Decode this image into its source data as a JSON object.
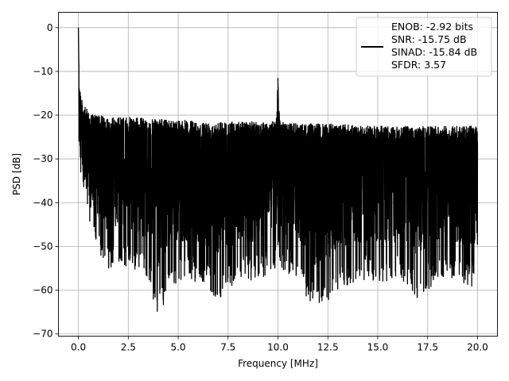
{
  "chart_data": {
    "type": "line",
    "title": "",
    "xlabel": "Frequency [MHz]",
    "ylabel": "PSD [dB]",
    "xlim": [
      -0.999,
      20.999
    ],
    "ylim": [
      -70.5,
      3.5
    ],
    "xticks": [
      0.0,
      2.5,
      5.0,
      7.5,
      10.0,
      12.5,
      15.0,
      17.5,
      20.0
    ],
    "xtick_labels": [
      "0.0",
      "2.5",
      "5.0",
      "7.5",
      "10.0",
      "12.5",
      "15.0",
      "17.5",
      "20.0"
    ],
    "yticks": [
      0,
      -10,
      -20,
      -30,
      -40,
      -50,
      -60,
      -70
    ],
    "ytick_labels": [
      "0",
      "−10",
      "−20",
      "−30",
      "−40",
      "−50",
      "−60",
      "−70"
    ],
    "grid": true,
    "line_color": "#000000",
    "legend": {
      "location": "upper-right",
      "entries": [
        "ENOB: -2.92 bits",
        "SNR: -15.75 dB",
        "SINAD: -15.84 dB",
        "SFDR: 3.57"
      ]
    },
    "series": [
      {
        "x": [
          0.0,
          0.02,
          0.05,
          0.1,
          0.15,
          0.2,
          0.3,
          0.4,
          0.5,
          0.6,
          0.8,
          1.0,
          1.5,
          2.0,
          2.5,
          3.0,
          3.5,
          4.0,
          5.0,
          6.0,
          7.0,
          8.0,
          9.0,
          9.9,
          10.0,
          10.1,
          11.0,
          12.0,
          13.0,
          14.0,
          15.0,
          16.0,
          17.0,
          18.0,
          19.0,
          20.0
        ],
        "upper": [
          0,
          -8,
          -11,
          -14,
          -16,
          -17,
          -18,
          -18.5,
          -19,
          -19.5,
          -20,
          -20,
          -20.5,
          -20.5,
          -20.5,
          -20.5,
          -21,
          -21,
          -21,
          -21.5,
          -21.5,
          -21.5,
          -21.5,
          -21.5,
          -11.5,
          -21.5,
          -22,
          -22,
          -22,
          -22.5,
          -22.5,
          -22.5,
          -22.5,
          -22.5,
          -22.5,
          -22.5
        ],
        "lower": [
          -20,
          -30,
          -33,
          -35,
          -37,
          -38,
          -40,
          -41,
          -43,
          -45,
          -50,
          -52,
          -55,
          -55,
          -55,
          -56,
          -58,
          -66,
          -58,
          -58,
          -62,
          -58,
          -58,
          -55,
          -50,
          -55,
          -58,
          -66,
          -60,
          -58,
          -58,
          -58,
          -62,
          -58,
          -58,
          -60
        ]
      }
    ]
  }
}
